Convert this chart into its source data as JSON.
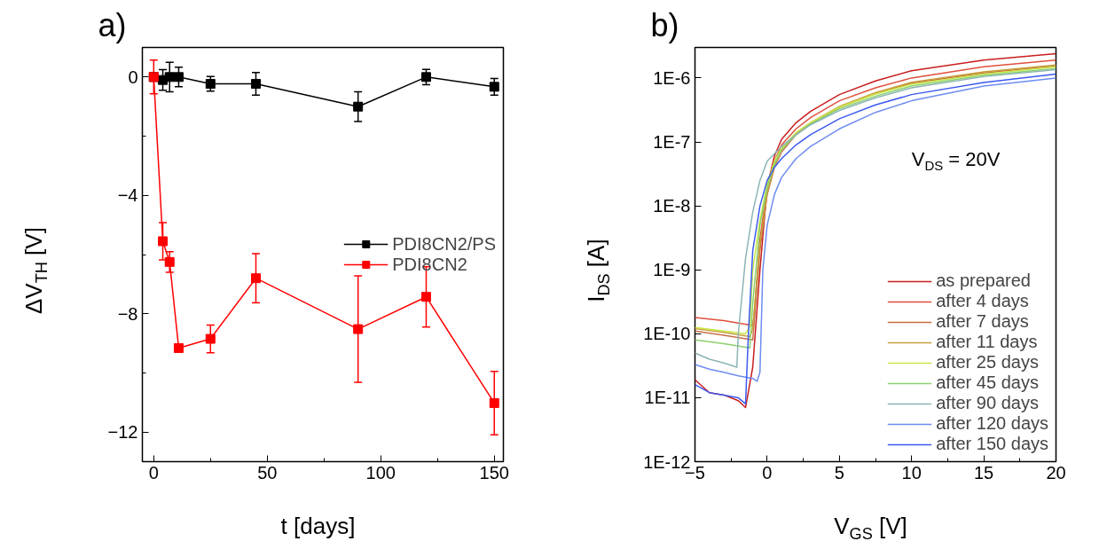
{
  "chart_data": [
    {
      "type": "line",
      "title": "a)",
      "xlabel": "t [days]",
      "ylabel": "ΔV$_{TH}$ [V]",
      "x": [
        0,
        4,
        7,
        11,
        25,
        45,
        90,
        120,
        150
      ],
      "xlim": [
        -5,
        154
      ],
      "xticks": [
        0,
        50,
        100,
        150
      ],
      "ylim": [
        -13.0,
        1.0
      ],
      "yticks": [
        -12,
        -8,
        -4,
        0
      ],
      "marker": "square",
      "line_style": "solid",
      "grid": false,
      "legend": "right",
      "series": [
        {
          "name": "PDI8CN2/PS",
          "color": "#000000",
          "values": [
            0,
            -0.1,
            0,
            0,
            -0.23,
            -0.23,
            -1.0,
            0,
            -0.33
          ],
          "errors": [
            null,
            0.35,
            0.5,
            0.33,
            0.25,
            0.38,
            0.5,
            0.26,
            0.28
          ]
        },
        {
          "name": "PDI8CN2",
          "color": "#ff0000",
          "values": [
            0,
            -5.55,
            -6.25,
            -9.16,
            -8.85,
            -6.8,
            -8.52,
            -7.43,
            -11.02
          ],
          "errors": [
            0.57,
            0.63,
            0.35,
            null,
            0.47,
            0.83,
            1.8,
            1.02,
            1.07
          ]
        }
      ]
    },
    {
      "type": "line",
      "title": "b)",
      "xlabel": "V$_{GS}$ [V]",
      "ylabel": "I$_{DS}$ [A]",
      "log": "y",
      "xlim": [
        -5,
        20
      ],
      "xticks": [
        -5,
        0,
        5,
        10,
        15,
        20
      ],
      "ylim": [
        1e-12,
        3e-06
      ],
      "yticks": [
        {
          "value": 1e-12,
          "label": "1E-12"
        },
        {
          "value": 1e-11,
          "label": "1E-11"
        },
        {
          "value": 1e-10,
          "label": "1E-10"
        },
        {
          "value": 1e-09,
          "label": "1E-9"
        },
        {
          "value": 1e-08,
          "label": "1E-8"
        },
        {
          "value": 1e-07,
          "label": "1E-7"
        },
        {
          "value": 1e-06,
          "label": "1E-6"
        }
      ],
      "marker": "none",
      "line_style": "solid",
      "grid": false,
      "legend": "bottom right",
      "annotations": [
        "V$_{DS}$ = 20V"
      ],
      "series": [
        {
          "name": "as prepared",
          "color": "#c81e1e",
          "x": [
            -5,
            -4,
            -3,
            -2,
            -1.5,
            -1,
            -0.5,
            0,
            0.5,
            1,
            2,
            3,
            5,
            7.5,
            10,
            15,
            20
          ],
          "values": [
            1.9e-11,
            1.2e-11,
            1.1e-11,
            9e-12,
            7e-12,
            3e-11,
            1e-09,
            2e-08,
            6e-08,
            1.1e-07,
            2e-07,
            3e-07,
            5.5e-07,
            9e-07,
            1.3e-06,
            1.9e-06,
            2.4e-06
          ]
        },
        {
          "name": "after 4 days",
          "color": "#e0503c",
          "x": [
            -5,
            -3,
            -1,
            -0.9,
            -0.5,
            0,
            0.5,
            1,
            2,
            3,
            5,
            7.5,
            10,
            15,
            20
          ],
          "values": [
            1.8e-10,
            1.6e-10,
            1.35e-10,
            2e-10,
            3e-09,
            2e-08,
            5e-08,
            9e-08,
            1.6e-07,
            2.4e-07,
            4.4e-07,
            7e-07,
            1e-06,
            1.5e-06,
            1.9e-06
          ]
        },
        {
          "name": "after 7 days",
          "color": "#c86e46",
          "x": [
            -5,
            -3,
            -1,
            -0.9,
            -0.5,
            0,
            0.5,
            1,
            2,
            3,
            5,
            7.5,
            10,
            15,
            20
          ],
          "values": [
            1.1e-10,
            9.5e-11,
            8e-11,
            1.5e-10,
            2e-09,
            1.5e-08,
            4e-08,
            7e-08,
            1.3e-07,
            1.9e-07,
            3.5e-07,
            5.7e-07,
            8.3e-07,
            1.2e-06,
            1.55e-06
          ]
        },
        {
          "name": "after 11 days",
          "color": "#c8a03c",
          "x": [
            -5,
            -3,
            -1.2,
            -1,
            -0.5,
            0,
            0.5,
            1,
            2,
            3,
            5,
            7.5,
            10,
            15,
            20
          ],
          "values": [
            1.2e-10,
            1.05e-10,
            9e-11,
            1.2e-10,
            2.5e-09,
            1.6e-08,
            4.2e-08,
            7.5e-08,
            1.35e-07,
            2e-07,
            3.6e-07,
            5.9e-07,
            8.6e-07,
            1.25e-06,
            1.6e-06
          ]
        },
        {
          "name": "after 25 days",
          "color": "#c8e646",
          "x": [
            -5,
            -3,
            -1.5,
            -1.2,
            -1,
            -0.5,
            0,
            0.5,
            1,
            2,
            3,
            5,
            7.5,
            10,
            15,
            20
          ],
          "values": [
            1.25e-10,
            1.1e-10,
            1e-10,
            1.3e-10,
            1e-09,
            6e-09,
            2.2e-08,
            5e-08,
            8e-08,
            1.4e-07,
            2e-07,
            3.5e-07,
            5.6e-07,
            8e-07,
            1.15e-06,
            1.5e-06
          ]
        },
        {
          "name": "after 45 days",
          "color": "#8cd26e",
          "x": [
            -5,
            -3,
            -1.2,
            -1,
            -0.5,
            0,
            0.5,
            1,
            2,
            3,
            5,
            7.5,
            10,
            15,
            20
          ],
          "values": [
            8e-11,
            7e-11,
            6e-11,
            3e-10,
            5e-09,
            1.9e-08,
            4.5e-08,
            7.5e-08,
            1.3e-07,
            1.9e-07,
            3.3e-07,
            5.2e-07,
            7.5e-07,
            1.1e-06,
            1.4e-06
          ]
        },
        {
          "name": "after 90 days",
          "color": "#8cb4b4",
          "x": [
            -5,
            -4,
            -3,
            -2.1,
            -2,
            -1.5,
            -1,
            -0.5,
            0,
            1,
            2,
            3,
            5,
            7.5,
            10,
            15,
            20
          ],
          "values": [
            5e-11,
            4e-11,
            3.5e-11,
            3e-11,
            1e-10,
            1.5e-09,
            8e-09,
            2.5e-08,
            5e-08,
            8.5e-08,
            1.3e-07,
            1.85e-07,
            3.1e-07,
            4.9e-07,
            7e-07,
            1.05e-06,
            1.35e-06
          ]
        },
        {
          "name": "after 120 days",
          "color": "#6e8cf0",
          "x": [
            -5,
            -4,
            -3,
            -2,
            -1,
            -0.7,
            -0.5,
            -0.3,
            0,
            0.5,
            1,
            2,
            3,
            5,
            7.5,
            10,
            15,
            20
          ],
          "values": [
            3.3e-11,
            2.8e-11,
            2.5e-11,
            2.2e-11,
            2e-11,
            1.8e-11,
            2.5e-11,
            1e-09,
            5e-09,
            1.5e-08,
            2.8e-08,
            5.5e-08,
            8.5e-08,
            1.6e-07,
            2.9e-07,
            4.4e-07,
            7.5e-07,
            1e-06
          ]
        },
        {
          "name": "after 150 days",
          "color": "#3c5af0",
          "x": [
            -5,
            -4,
            -3,
            -2,
            -1.5,
            -1.3,
            -1,
            -0.5,
            0,
            0.5,
            1,
            2,
            3,
            5,
            7.5,
            10,
            15,
            20
          ],
          "values": [
            1.6e-11,
            1.2e-11,
            1.1e-11,
            1e-11,
            8e-12,
            1e-10,
            2e-09,
            1e-08,
            2.5e-08,
            4e-08,
            5.5e-08,
            9e-08,
            1.3e-07,
            2.3e-07,
            3.8e-07,
            5.5e-07,
            8.5e-07,
            1.15e-06
          ]
        }
      ]
    }
  ]
}
